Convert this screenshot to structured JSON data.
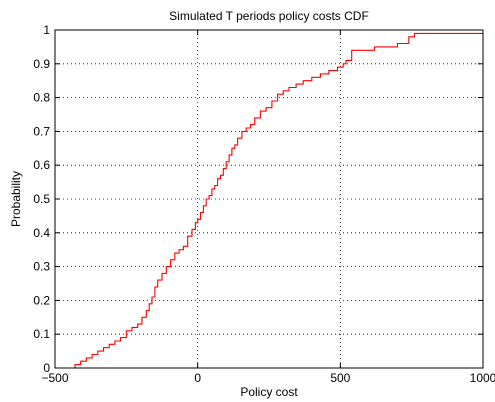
{
  "chart_data": {
    "type": "line",
    "title": "Simulated T periods policy costs CDF",
    "xlabel": "Policy cost",
    "ylabel": "Probability",
    "xlim": [
      -500,
      1000
    ],
    "ylim": [
      0,
      1
    ],
    "grid": true,
    "x_ticks": [
      {
        "value": -500,
        "label": "−500"
      },
      {
        "value": 0,
        "label": "0"
      },
      {
        "value": 500,
        "label": "500"
      },
      {
        "value": 1000,
        "label": "1000"
      }
    ],
    "y_ticks": [
      {
        "value": 0,
        "label": "0"
      },
      {
        "value": 0.1,
        "label": "0.1"
      },
      {
        "value": 0.2,
        "label": "0.2"
      },
      {
        "value": 0.3,
        "label": "0.3"
      },
      {
        "value": 0.4,
        "label": "0.4"
      },
      {
        "value": 0.5,
        "label": "0.5"
      },
      {
        "value": 0.6,
        "label": "0.6"
      },
      {
        "value": 0.7,
        "label": "0.7"
      },
      {
        "value": 0.8,
        "label": "0.8"
      },
      {
        "value": 0.9,
        "label": "0.9"
      },
      {
        "value": 1,
        "label": "1"
      }
    ],
    "series": [
      {
        "color": "#ff0000",
        "step": true,
        "x": [
          -460,
          -430,
          -410,
          -390,
          -370,
          -350,
          -330,
          -310,
          -290,
          -270,
          -250,
          -230,
          -210,
          -195,
          -180,
          -170,
          -160,
          -150,
          -140,
          -125,
          -110,
          -95,
          -80,
          -65,
          -50,
          -35,
          -20,
          -8,
          0,
          10,
          20,
          30,
          40,
          50,
          60,
          70,
          80,
          90,
          100,
          110,
          120,
          130,
          140,
          155,
          170,
          185,
          200,
          220,
          240,
          260,
          280,
          300,
          320,
          345,
          370,
          400,
          430,
          460,
          490,
          510,
          520,
          540,
          580,
          620,
          660,
          700,
          740,
          760,
          775,
          800,
          850,
          900,
          950,
          1000
        ],
        "y": [
          0.0,
          0.01,
          0.02,
          0.03,
          0.04,
          0.05,
          0.06,
          0.07,
          0.08,
          0.09,
          0.11,
          0.12,
          0.13,
          0.15,
          0.17,
          0.19,
          0.21,
          0.24,
          0.26,
          0.28,
          0.3,
          0.32,
          0.34,
          0.35,
          0.36,
          0.39,
          0.41,
          0.43,
          0.44,
          0.46,
          0.48,
          0.5,
          0.51,
          0.53,
          0.54,
          0.56,
          0.57,
          0.59,
          0.61,
          0.63,
          0.65,
          0.66,
          0.68,
          0.7,
          0.71,
          0.72,
          0.74,
          0.76,
          0.77,
          0.79,
          0.81,
          0.82,
          0.83,
          0.84,
          0.85,
          0.86,
          0.87,
          0.88,
          0.89,
          0.9,
          0.91,
          0.94,
          0.94,
          0.95,
          0.95,
          0.96,
          0.98,
          0.99,
          0.99,
          0.99,
          0.99,
          0.99,
          0.99,
          0.99
        ]
      }
    ]
  }
}
